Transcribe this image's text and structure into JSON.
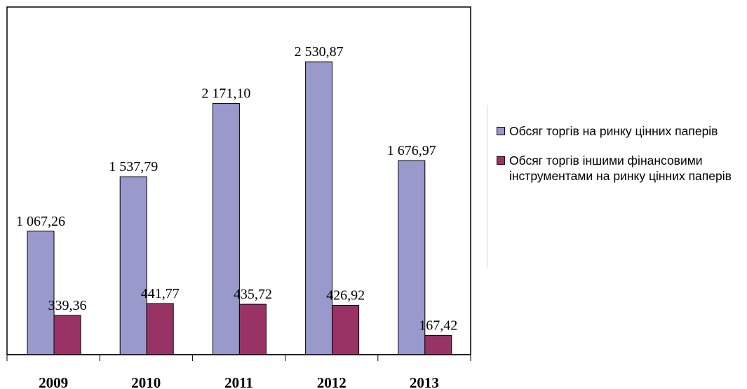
{
  "chart_data": {
    "type": "bar",
    "categories": [
      "2009",
      "2010",
      "2011",
      "2012",
      "2013"
    ],
    "series": [
      {
        "name": "Обсяг торгів на ринку цінних паперів",
        "values": [
          1067.26,
          1537.79,
          2171.1,
          2530.87,
          1676.97
        ],
        "labels": [
          "1 067,26",
          "1 537,79",
          "2 171,10",
          "2 530,87",
          "1 676,97"
        ],
        "color": "#9999cc"
      },
      {
        "name": "Обсяг торгів  іншими фінансовими інструментами на ринку цінних паперів",
        "values": [
          339.36,
          441.77,
          435.72,
          426.92,
          167.42
        ],
        "labels": [
          "339,36",
          "441,77",
          "435,72",
          "426,92",
          "167,42"
        ],
        "color": "#993366"
      }
    ],
    "ylim": [
      0,
      2800
    ],
    "grid": false,
    "legend_position": "right"
  }
}
